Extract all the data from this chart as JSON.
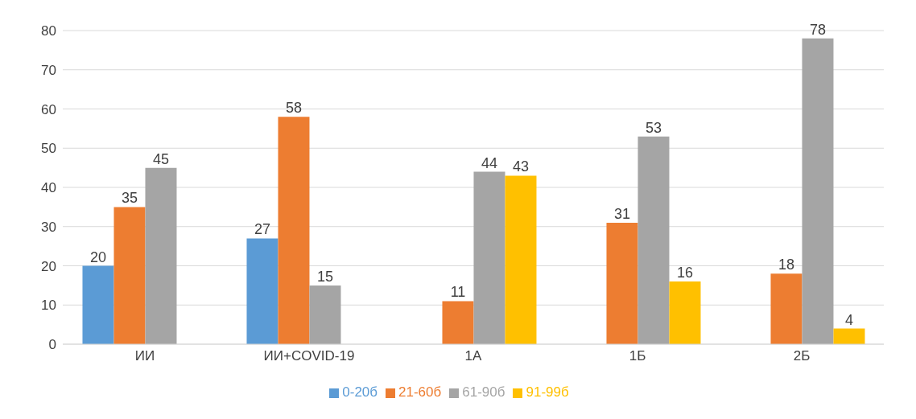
{
  "chart_data": {
    "type": "bar",
    "categories": [
      "ИИ",
      "ИИ+COVID-19",
      "1А",
      "1Б",
      "2Б"
    ],
    "series": [
      {
        "name": "0-20б",
        "color": "#5b9bd5",
        "values": [
          20,
          27,
          null,
          null,
          null
        ]
      },
      {
        "name": "21-60б",
        "color": "#ed7d31",
        "values": [
          35,
          58,
          11,
          31,
          18
        ]
      },
      {
        "name": "61-90б",
        "color": "#a5a5a5",
        "values": [
          45,
          15,
          44,
          53,
          78
        ]
      },
      {
        "name": "91-99б",
        "color": "#ffc000",
        "values": [
          null,
          null,
          43,
          16,
          4
        ]
      }
    ],
    "ylim": [
      0,
      80
    ],
    "yticks": [
      0,
      10,
      20,
      30,
      40,
      50,
      60,
      70,
      80
    ],
    "grid": "y",
    "legend": "bottom",
    "data_labels": true
  }
}
